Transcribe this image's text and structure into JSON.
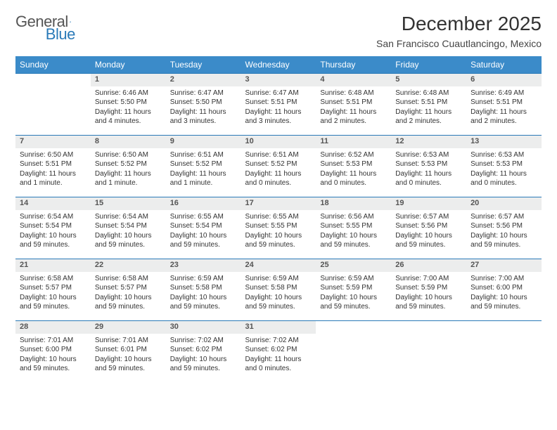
{
  "logo": {
    "text1": "General",
    "text2": "Blue"
  },
  "title": "December 2025",
  "location": "San Francisco Cuautlancingo, Mexico",
  "colors": {
    "accent": "#3b8bc9",
    "rule": "#2a7ab8",
    "dayBg": "#eceded"
  },
  "weekdays": [
    "Sunday",
    "Monday",
    "Tuesday",
    "Wednesday",
    "Thursday",
    "Friday",
    "Saturday"
  ],
  "weeks": [
    {
      "nums": [
        "",
        "1",
        "2",
        "3",
        "4",
        "5",
        "6"
      ],
      "cells": [
        {},
        {
          "sr": "Sunrise: 6:46 AM",
          "ss": "Sunset: 5:50 PM",
          "dl": "Daylight: 11 hours and 4 minutes."
        },
        {
          "sr": "Sunrise: 6:47 AM",
          "ss": "Sunset: 5:50 PM",
          "dl": "Daylight: 11 hours and 3 minutes."
        },
        {
          "sr": "Sunrise: 6:47 AM",
          "ss": "Sunset: 5:51 PM",
          "dl": "Daylight: 11 hours and 3 minutes."
        },
        {
          "sr": "Sunrise: 6:48 AM",
          "ss": "Sunset: 5:51 PM",
          "dl": "Daylight: 11 hours and 2 minutes."
        },
        {
          "sr": "Sunrise: 6:48 AM",
          "ss": "Sunset: 5:51 PM",
          "dl": "Daylight: 11 hours and 2 minutes."
        },
        {
          "sr": "Sunrise: 6:49 AM",
          "ss": "Sunset: 5:51 PM",
          "dl": "Daylight: 11 hours and 2 minutes."
        }
      ]
    },
    {
      "nums": [
        "7",
        "8",
        "9",
        "10",
        "11",
        "12",
        "13"
      ],
      "cells": [
        {
          "sr": "Sunrise: 6:50 AM",
          "ss": "Sunset: 5:51 PM",
          "dl": "Daylight: 11 hours and 1 minute."
        },
        {
          "sr": "Sunrise: 6:50 AM",
          "ss": "Sunset: 5:52 PM",
          "dl": "Daylight: 11 hours and 1 minute."
        },
        {
          "sr": "Sunrise: 6:51 AM",
          "ss": "Sunset: 5:52 PM",
          "dl": "Daylight: 11 hours and 1 minute."
        },
        {
          "sr": "Sunrise: 6:51 AM",
          "ss": "Sunset: 5:52 PM",
          "dl": "Daylight: 11 hours and 0 minutes."
        },
        {
          "sr": "Sunrise: 6:52 AM",
          "ss": "Sunset: 5:53 PM",
          "dl": "Daylight: 11 hours and 0 minutes."
        },
        {
          "sr": "Sunrise: 6:53 AM",
          "ss": "Sunset: 5:53 PM",
          "dl": "Daylight: 11 hours and 0 minutes."
        },
        {
          "sr": "Sunrise: 6:53 AM",
          "ss": "Sunset: 5:53 PM",
          "dl": "Daylight: 11 hours and 0 minutes."
        }
      ]
    },
    {
      "nums": [
        "14",
        "15",
        "16",
        "17",
        "18",
        "19",
        "20"
      ],
      "cells": [
        {
          "sr": "Sunrise: 6:54 AM",
          "ss": "Sunset: 5:54 PM",
          "dl": "Daylight: 10 hours and 59 minutes."
        },
        {
          "sr": "Sunrise: 6:54 AM",
          "ss": "Sunset: 5:54 PM",
          "dl": "Daylight: 10 hours and 59 minutes."
        },
        {
          "sr": "Sunrise: 6:55 AM",
          "ss": "Sunset: 5:54 PM",
          "dl": "Daylight: 10 hours and 59 minutes."
        },
        {
          "sr": "Sunrise: 6:55 AM",
          "ss": "Sunset: 5:55 PM",
          "dl": "Daylight: 10 hours and 59 minutes."
        },
        {
          "sr": "Sunrise: 6:56 AM",
          "ss": "Sunset: 5:55 PM",
          "dl": "Daylight: 10 hours and 59 minutes."
        },
        {
          "sr": "Sunrise: 6:57 AM",
          "ss": "Sunset: 5:56 PM",
          "dl": "Daylight: 10 hours and 59 minutes."
        },
        {
          "sr": "Sunrise: 6:57 AM",
          "ss": "Sunset: 5:56 PM",
          "dl": "Daylight: 10 hours and 59 minutes."
        }
      ]
    },
    {
      "nums": [
        "21",
        "22",
        "23",
        "24",
        "25",
        "26",
        "27"
      ],
      "cells": [
        {
          "sr": "Sunrise: 6:58 AM",
          "ss": "Sunset: 5:57 PM",
          "dl": "Daylight: 10 hours and 59 minutes."
        },
        {
          "sr": "Sunrise: 6:58 AM",
          "ss": "Sunset: 5:57 PM",
          "dl": "Daylight: 10 hours and 59 minutes."
        },
        {
          "sr": "Sunrise: 6:59 AM",
          "ss": "Sunset: 5:58 PM",
          "dl": "Daylight: 10 hours and 59 minutes."
        },
        {
          "sr": "Sunrise: 6:59 AM",
          "ss": "Sunset: 5:58 PM",
          "dl": "Daylight: 10 hours and 59 minutes."
        },
        {
          "sr": "Sunrise: 6:59 AM",
          "ss": "Sunset: 5:59 PM",
          "dl": "Daylight: 10 hours and 59 minutes."
        },
        {
          "sr": "Sunrise: 7:00 AM",
          "ss": "Sunset: 5:59 PM",
          "dl": "Daylight: 10 hours and 59 minutes."
        },
        {
          "sr": "Sunrise: 7:00 AM",
          "ss": "Sunset: 6:00 PM",
          "dl": "Daylight: 10 hours and 59 minutes."
        }
      ]
    },
    {
      "nums": [
        "28",
        "29",
        "30",
        "31",
        "",
        "",
        ""
      ],
      "cells": [
        {
          "sr": "Sunrise: 7:01 AM",
          "ss": "Sunset: 6:00 PM",
          "dl": "Daylight: 10 hours and 59 minutes."
        },
        {
          "sr": "Sunrise: 7:01 AM",
          "ss": "Sunset: 6:01 PM",
          "dl": "Daylight: 10 hours and 59 minutes."
        },
        {
          "sr": "Sunrise: 7:02 AM",
          "ss": "Sunset: 6:02 PM",
          "dl": "Daylight: 10 hours and 59 minutes."
        },
        {
          "sr": "Sunrise: 7:02 AM",
          "ss": "Sunset: 6:02 PM",
          "dl": "Daylight: 11 hours and 0 minutes."
        },
        {},
        {},
        {}
      ]
    }
  ]
}
